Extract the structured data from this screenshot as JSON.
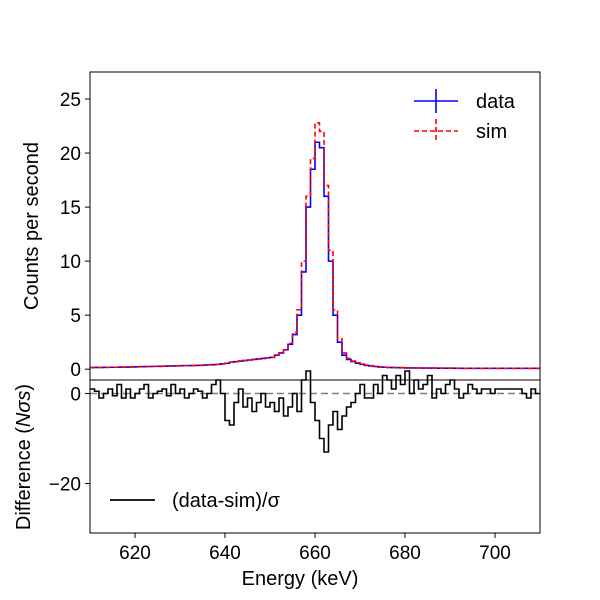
{
  "chart_data": [
    {
      "type": "line",
      "panel": "top",
      "ylabel": "Counts per second",
      "xlim": [
        610,
        710
      ],
      "ylim": [
        -1,
        27.5
      ],
      "yticks": [
        0,
        5,
        10,
        15,
        20,
        25
      ],
      "ytick_labels": [
        "0",
        "5",
        "10",
        "15",
        "20",
        "25"
      ],
      "legend_position": "top-right",
      "series": [
        {
          "name": "data",
          "color": "#0000ff",
          "style": "step",
          "x": [
            610,
            611,
            612,
            613,
            614,
            615,
            616,
            617,
            618,
            619,
            620,
            621,
            622,
            623,
            624,
            625,
            626,
            627,
            628,
            629,
            630,
            631,
            632,
            633,
            634,
            635,
            636,
            637,
            638,
            639,
            640,
            641,
            642,
            643,
            644,
            645,
            646,
            647,
            648,
            649,
            650,
            651,
            652,
            653,
            654,
            655,
            656,
            657,
            658,
            659,
            660,
            661,
            662,
            663,
            664,
            665,
            666,
            667,
            668,
            669,
            670,
            671,
            672,
            673,
            674,
            675,
            676,
            677,
            678,
            679,
            680,
            681,
            682,
            683,
            684,
            685,
            686,
            687,
            688,
            689,
            690,
            691,
            692,
            693,
            694,
            695,
            696,
            697,
            698,
            699,
            700,
            701,
            702,
            703,
            704,
            705,
            706,
            707,
            708,
            709
          ],
          "values": [
            0.15,
            0.16,
            0.16,
            0.17,
            0.18,
            0.18,
            0.19,
            0.2,
            0.2,
            0.21,
            0.22,
            0.23,
            0.24,
            0.25,
            0.26,
            0.27,
            0.28,
            0.29,
            0.3,
            0.31,
            0.32,
            0.33,
            0.34,
            0.35,
            0.36,
            0.38,
            0.4,
            0.42,
            0.45,
            0.5,
            0.55,
            0.65,
            0.7,
            0.75,
            0.8,
            0.85,
            0.9,
            0.95,
            1.0,
            1.05,
            1.1,
            1.3,
            1.5,
            1.8,
            2.3,
            3.2,
            5.0,
            9.0,
            15.0,
            18.5,
            21.0,
            20.5,
            16.0,
            10.0,
            5.0,
            2.5,
            1.3,
            0.9,
            0.7,
            0.55,
            0.45,
            0.35,
            0.3,
            0.25,
            0.2,
            0.18,
            0.16,
            0.15,
            0.14,
            0.13,
            0.12,
            0.12,
            0.11,
            0.11,
            0.1,
            0.1,
            0.1,
            0.09,
            0.09,
            0.09,
            0.09,
            0.08,
            0.08,
            0.08,
            0.08,
            0.08,
            0.08,
            0.08,
            0.08,
            0.08,
            0.08,
            0.08,
            0.08,
            0.08,
            0.08,
            0.08,
            0.08,
            0.08,
            0.08,
            0.08
          ]
        },
        {
          "name": "sim",
          "color": "#ff0000",
          "style": "step-dashed",
          "x": [
            610,
            611,
            612,
            613,
            614,
            615,
            616,
            617,
            618,
            619,
            620,
            621,
            622,
            623,
            624,
            625,
            626,
            627,
            628,
            629,
            630,
            631,
            632,
            633,
            634,
            635,
            636,
            637,
            638,
            639,
            640,
            641,
            642,
            643,
            644,
            645,
            646,
            647,
            648,
            649,
            650,
            651,
            652,
            653,
            654,
            655,
            656,
            657,
            658,
            659,
            660,
            661,
            662,
            663,
            664,
            665,
            666,
            667,
            668,
            669,
            670,
            671,
            672,
            673,
            674,
            675,
            676,
            677,
            678,
            679,
            680,
            681,
            682,
            683,
            684,
            685,
            686,
            687,
            688,
            689,
            690,
            691,
            692,
            693,
            694,
            695,
            696,
            697,
            698,
            699,
            700,
            701,
            702,
            703,
            704,
            705,
            706,
            707,
            708,
            709
          ],
          "values": [
            0.15,
            0.16,
            0.16,
            0.17,
            0.18,
            0.18,
            0.19,
            0.2,
            0.2,
            0.21,
            0.22,
            0.23,
            0.24,
            0.25,
            0.26,
            0.27,
            0.28,
            0.29,
            0.3,
            0.31,
            0.32,
            0.33,
            0.34,
            0.35,
            0.36,
            0.38,
            0.4,
            0.42,
            0.45,
            0.5,
            0.55,
            0.65,
            0.7,
            0.75,
            0.8,
            0.85,
            0.9,
            0.95,
            1.0,
            1.05,
            1.1,
            1.3,
            1.5,
            1.8,
            2.4,
            3.4,
            5.5,
            10.0,
            16.0,
            19.5,
            22.8,
            22.0,
            17.0,
            11.0,
            5.5,
            2.8,
            1.5,
            1.0,
            0.75,
            0.6,
            0.48,
            0.38,
            0.32,
            0.27,
            0.22,
            0.19,
            0.17,
            0.16,
            0.15,
            0.14,
            0.13,
            0.12,
            0.12,
            0.11,
            0.11,
            0.1,
            0.1,
            0.1,
            0.09,
            0.09,
            0.09,
            0.09,
            0.08,
            0.08,
            0.08,
            0.08,
            0.08,
            0.08,
            0.08,
            0.08,
            0.08,
            0.08,
            0.08,
            0.08,
            0.08,
            0.08,
            0.08,
            0.08,
            0.08,
            0.08
          ]
        }
      ]
    },
    {
      "type": "line",
      "panel": "bottom",
      "xlabel": "Energy (keV)",
      "ylabel_prefix": "Difference (",
      "ylabel_n": "N",
      "ylabel_sigma": "σs",
      "ylabel_suffix": ")",
      "xlim": [
        610,
        710
      ],
      "ylim": [
        -31,
        3
      ],
      "xticks": [
        620,
        640,
        660,
        680,
        700
      ],
      "xtick_labels": [
        "620",
        "640",
        "660",
        "680",
        "700"
      ],
      "yticks": [
        0,
        -20
      ],
      "ytick_labels": [
        "0",
        "−20"
      ],
      "reference_line": 0,
      "legend_position": "bottom-left",
      "series": [
        {
          "name": "(data-sim)/σ",
          "color": "#000000",
          "style": "step",
          "x": [
            610,
            611,
            612,
            613,
            614,
            615,
            616,
            617,
            618,
            619,
            620,
            621,
            622,
            623,
            624,
            625,
            626,
            627,
            628,
            629,
            630,
            631,
            632,
            633,
            634,
            635,
            636,
            637,
            638,
            639,
            640,
            641,
            642,
            643,
            644,
            645,
            646,
            647,
            648,
            649,
            650,
            651,
            652,
            653,
            654,
            655,
            656,
            657,
            658,
            659,
            660,
            661,
            662,
            663,
            664,
            665,
            666,
            667,
            668,
            669,
            670,
            671,
            672,
            673,
            674,
            675,
            676,
            677,
            678,
            679,
            680,
            681,
            682,
            683,
            684,
            685,
            686,
            687,
            688,
            689,
            690,
            691,
            692,
            693,
            694,
            695,
            696,
            697,
            698,
            699,
            700,
            701,
            702,
            703,
            704,
            705,
            706,
            707,
            708,
            709
          ],
          "values": [
            1,
            0.5,
            -1,
            0,
            1,
            -0.5,
            2,
            -1,
            1,
            -1,
            0,
            1,
            2,
            -1,
            0,
            0.5,
            1,
            -0.5,
            2,
            0,
            1,
            -1,
            0,
            1,
            0.5,
            -1,
            0,
            2,
            3,
            0,
            -6,
            -7,
            -2,
            1,
            -3,
            -1,
            -4,
            -2,
            0,
            -3,
            -2,
            -4,
            -1,
            -5,
            -3,
            0,
            -4,
            3,
            5,
            -2,
            -6,
            -10,
            -13,
            -7,
            -4,
            -8,
            -5,
            -3,
            -2,
            0,
            2,
            -1,
            -1,
            2,
            0,
            4,
            3,
            1,
            4,
            2,
            5,
            0,
            3,
            1,
            2,
            4,
            -1,
            1,
            0,
            2,
            3,
            1,
            -1,
            0,
            2,
            1,
            0,
            1,
            1,
            0,
            1,
            1,
            1,
            1,
            1,
            1,
            0,
            -1,
            1,
            0
          ]
        }
      ]
    }
  ]
}
